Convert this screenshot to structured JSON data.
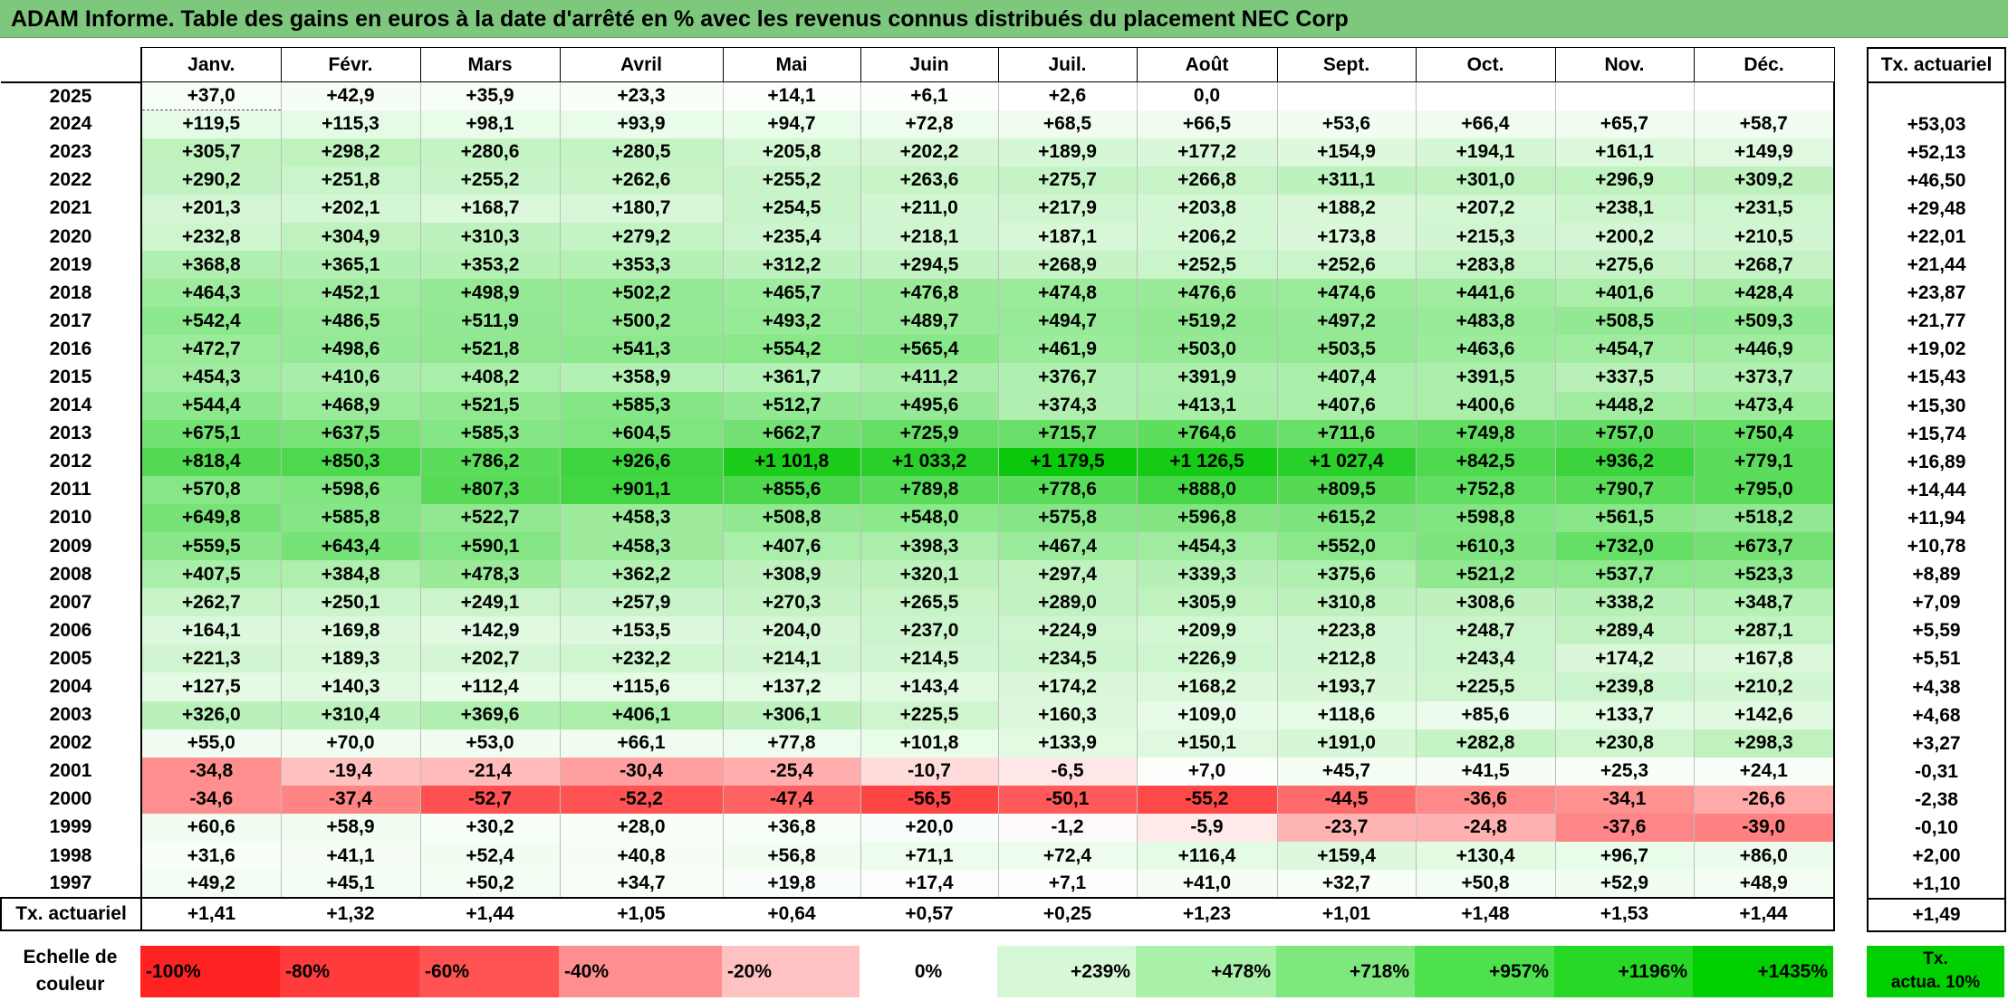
{
  "title": "ADAM Informe. Table des gains en euros à la date d'arrêté en % avec les revenus connus distribués du placement NEC Corp",
  "months": [
    "Janv.",
    "Févr.",
    "Mars",
    "Avril",
    "Mai",
    "Juin",
    "Juil.",
    "Août",
    "Sept.",
    "Oct.",
    "Nov.",
    "Déc."
  ],
  "side_header": "Tx. actuariel",
  "rows": [
    {
      "year": "2025",
      "vals": [
        "+37,0",
        "+42,9",
        "+35,9",
        "+23,3",
        "+14,1",
        "+6,1",
        "+2,6",
        "0,0",
        "",
        "",
        "",
        ""
      ],
      "bg": [
        "#f7fdf7",
        "#f6fdf6",
        "#f7fdf7",
        "#f9fef9",
        "#fbfefb",
        "#fdfffd",
        "#fefffe",
        "#ffffff",
        "#ffffff",
        "#ffffff",
        "#ffffff",
        "#ffffff"
      ],
      "tx": ""
    },
    {
      "year": "2024",
      "vals": [
        "+119,5",
        "+115,3",
        "+98,1",
        "+93,9",
        "+94,7",
        "+72,8",
        "+68,5",
        "+66,5",
        "+53,6",
        "+66,4",
        "+65,7",
        "+58,7"
      ],
      "bg": [
        "#e5fbe5",
        "#e6fbe6",
        "#e8fce8",
        "#e9fce9",
        "#e9fce9",
        "#eefcee",
        "#effcef",
        "#effcef",
        "#f2fdf2",
        "#effcef",
        "#effcef",
        "#f1fdf1"
      ],
      "tx": "+53,03"
    },
    {
      "year": "2023",
      "vals": [
        "+305,7",
        "+298,2",
        "+280,6",
        "+280,5",
        "+205,8",
        "+202,2",
        "+189,9",
        "+177,2",
        "+154,9",
        "+194,1",
        "+161,1",
        "+149,9"
      ],
      "bg": [
        "#bff2bf",
        "#c0f2c0",
        "#c4f3c4",
        "#c4f3c4",
        "#d3f6d3",
        "#d4f6d4",
        "#d6f7d6",
        "#d9f7d9",
        "#def8de",
        "#d5f7d5",
        "#dcf8dc",
        "#dff8df"
      ],
      "tx": "+52,13"
    },
    {
      "year": "2022",
      "vals": [
        "+290,2",
        "+251,8",
        "+255,2",
        "+262,6",
        "+255,2",
        "+263,6",
        "+275,7",
        "+266,8",
        "+311,1",
        "+301,0",
        "+296,9",
        "+309,2"
      ],
      "bg": [
        "#c2f2c2",
        "#caf4ca",
        "#c9f4c9",
        "#c8f4c8",
        "#c9f4c9",
        "#c8f4c8",
        "#c5f3c5",
        "#c7f3c7",
        "#bdf1bd",
        "#bff2bf",
        "#c0f2c0",
        "#bef1be"
      ],
      "tx": "+46,50"
    },
    {
      "year": "2021",
      "vals": [
        "+201,3",
        "+202,1",
        "+168,7",
        "+180,7",
        "+254,5",
        "+211,0",
        "+217,9",
        "+203,8",
        "+188,2",
        "+207,2",
        "+238,1",
        "+231,5"
      ],
      "bg": [
        "#d4f6d4",
        "#d4f6d4",
        "#dbf8db",
        "#d8f7d8",
        "#c9f4c9",
        "#d2f6d2",
        "#d1f5d1",
        "#d3f6d3",
        "#d7f7d7",
        "#d3f6d3",
        "#ccf5cc",
        "#cef5ce"
      ],
      "tx": "+29,48"
    },
    {
      "year": "2020",
      "vals": [
        "+232,8",
        "+304,9",
        "+310,3",
        "+279,2",
        "+235,4",
        "+218,1",
        "+187,1",
        "+206,2",
        "+173,8",
        "+215,3",
        "+200,2",
        "+210,5"
      ],
      "bg": [
        "#cef5ce",
        "#bff2bf",
        "#bdf1bd",
        "#c4f3c4",
        "#cdf5cd",
        "#d1f5d1",
        "#d7f7d7",
        "#d3f6d3",
        "#daf7da",
        "#d1f5d1",
        "#d4f6d4",
        "#d2f6d2"
      ],
      "tx": "+22,01"
    },
    {
      "year": "2019",
      "vals": [
        "+368,8",
        "+365,1",
        "+353,2",
        "+353,3",
        "+312,2",
        "+294,5",
        "+268,9",
        "+252,5",
        "+252,6",
        "+283,8",
        "+275,6",
        "+268,7"
      ],
      "bg": [
        "#b1efb1",
        "#b2efb2",
        "#b5f0b5",
        "#b5f0b5",
        "#bdf1bd",
        "#c1f2c1",
        "#c6f3c6",
        "#caf4ca",
        "#caf4ca",
        "#c3f3c3",
        "#c5f3c5",
        "#c6f3c6"
      ],
      "tx": "+21,44"
    },
    {
      "year": "2018",
      "vals": [
        "+464,3",
        "+452,1",
        "+498,9",
        "+502,2",
        "+465,7",
        "+476,8",
        "+474,8",
        "+476,6",
        "+474,6",
        "+441,6",
        "+401,6",
        "+428,4"
      ],
      "bg": [
        "#9deb9d",
        "#a0eba0",
        "#95e995",
        "#95e995",
        "#9deb9d",
        "#9aea9a",
        "#9beb9b",
        "#9aea9a",
        "#9beb9b",
        "#a2eca2",
        "#aaeeaa",
        "#a5eda5"
      ],
      "tx": "+23,87"
    },
    {
      "year": "2017",
      "vals": [
        "+542,4",
        "+486,5",
        "+511,9",
        "+500,2",
        "+493,2",
        "+489,7",
        "+494,7",
        "+519,2",
        "+497,2",
        "+483,8",
        "+508,5",
        "+509,3"
      ],
      "bg": [
        "#8de88d",
        "#98ea98",
        "#93e993",
        "#95e995",
        "#97ea97",
        "#98ea98",
        "#97ea97",
        "#91e891",
        "#96e996",
        "#98ea98",
        "#93e993",
        "#93e993"
      ],
      "tx": "+21,77"
    },
    {
      "year": "2016",
      "vals": [
        "+472,7",
        "+498,6",
        "+521,8",
        "+541,3",
        "+554,2",
        "+565,4",
        "+461,9",
        "+503,0",
        "+503,5",
        "+463,6",
        "+454,7",
        "+446,9"
      ],
      "bg": [
        "#9beb9b",
        "#96e996",
        "#91e891",
        "#8de88d",
        "#8ae78a",
        "#88e788",
        "#9deb9d",
        "#95e995",
        "#95e995",
        "#9deb9d",
        "#9feb9f",
        "#a1eca1"
      ],
      "tx": "+19,02"
    },
    {
      "year": "2015",
      "vals": [
        "+454,3",
        "+410,6",
        "+408,2",
        "+358,9",
        "+361,7",
        "+411,2",
        "+376,7",
        "+391,9",
        "+407,4",
        "+391,5",
        "+337,5",
        "+373,7"
      ],
      "bg": [
        "#9feb9f",
        "#a8eda8",
        "#a9eea9",
        "#b3f0b3",
        "#b3f0b3",
        "#a8eda8",
        "#afefaf",
        "#acefac",
        "#a9eea9",
        "#acefac",
        "#b8f0b8",
        "#b0efb0"
      ],
      "tx": "+15,43"
    },
    {
      "year": "2014",
      "vals": [
        "+544,4",
        "+468,9",
        "+521,5",
        "+585,3",
        "+512,7",
        "+495,6",
        "+374,3",
        "+413,1",
        "+407,6",
        "+400,6",
        "+448,2",
        "+473,4"
      ],
      "bg": [
        "#8ce88c",
        "#9ceb9c",
        "#91e891",
        "#84e684",
        "#93e993",
        "#96e996",
        "#b0efb0",
        "#a8eda8",
        "#a9eea9",
        "#aaeeaa",
        "#a1eca1",
        "#9beb9b"
      ],
      "tx": "+15,30"
    },
    {
      "year": "2013",
      "vals": [
        "+675,1",
        "+637,5",
        "+585,3",
        "+604,5",
        "+662,7",
        "+725,9",
        "+715,7",
        "+764,6",
        "+711,6",
        "+749,8",
        "+757,0",
        "+750,4"
      ],
      "bg": [
        "#71e171",
        "#79e279",
        "#84e684",
        "#80e580",
        "#74e174",
        "#67df67",
        "#69df69",
        "#5fdd5f",
        "#6adf6a",
        "#62de62",
        "#60dd60",
        "#62de62"
      ],
      "tx": "+15,74"
    },
    {
      "year": "2012",
      "vals": [
        "+818,4",
        "+850,3",
        "+786,2",
        "+926,6",
        "+1 101,8",
        "+1 033,2",
        "+1 179,5",
        "+1 126,5",
        "+1 027,4",
        "+842,5",
        "+936,2",
        "+779,1"
      ],
      "bg": [
        "#54da54",
        "#4dd94d",
        "#5bdc5b",
        "#3ed53e",
        "#1bcc1b",
        "#29d029",
        "#0cc80c",
        "#16cb16",
        "#2ad02a",
        "#4fd94f",
        "#3cd43c",
        "#5cdc5c"
      ],
      "tx": "+16,89"
    },
    {
      "year": "2011",
      "vals": [
        "+570,8",
        "+598,6",
        "+807,3",
        "+901,1",
        "+855,6",
        "+789,8",
        "+778,6",
        "+888,0",
        "+809,5",
        "+752,8",
        "+790,7",
        "+795,0"
      ],
      "bg": [
        "#87e787",
        "#81e581",
        "#57db57",
        "#43d643",
        "#4cd84c",
        "#5adc5a",
        "#5cdc5c",
        "#46d746",
        "#56da56",
        "#62de62",
        "#5adc5a",
        "#59dc59"
      ],
      "tx": "+14,44"
    },
    {
      "year": "2010",
      "vals": [
        "+649,8",
        "+585,8",
        "+522,7",
        "+458,3",
        "+508,8",
        "+548,0",
        "+575,8",
        "+596,8",
        "+615,2",
        "+598,8",
        "+561,5",
        "+518,2"
      ],
      "bg": [
        "#77e277",
        "#84e684",
        "#91e891",
        "#9eeb9e",
        "#93e993",
        "#8be88b",
        "#86e686",
        "#82e582",
        "#7ee47e",
        "#81e581",
        "#89e789",
        "#92e892"
      ],
      "tx": "+11,94"
    },
    {
      "year": "2009",
      "vals": [
        "+559,5",
        "+643,4",
        "+590,1",
        "+458,3",
        "+407,6",
        "+398,3",
        "+467,4",
        "+454,3",
        "+552,0",
        "+610,3",
        "+732,0",
        "+673,7"
      ],
      "bg": [
        "#89e789",
        "#77e277",
        "#83e583",
        "#9eeb9e",
        "#a9eea9",
        "#abeeab",
        "#9ceb9c",
        "#9feb9f",
        "#8ae78a",
        "#7fe47f",
        "#66df66",
        "#72e172"
      ],
      "tx": "+10,78"
    },
    {
      "year": "2008",
      "vals": [
        "+407,5",
        "+384,8",
        "+478,3",
        "+362,2",
        "+308,9",
        "+320,1",
        "+297,4",
        "+339,3",
        "+375,6",
        "+521,2",
        "+537,7",
        "+523,3"
      ],
      "bg": [
        "#a9eea9",
        "#aeefae",
        "#9aea9a",
        "#b3f0b3",
        "#bef1be",
        "#bcf1bc",
        "#c0f2c0",
        "#b7f0b7",
        "#afefaf",
        "#91e891",
        "#8ee88e",
        "#91e891"
      ],
      "tx": "+8,89"
    },
    {
      "year": "2007",
      "vals": [
        "+262,7",
        "+250,1",
        "+249,1",
        "+257,9",
        "+270,3",
        "+265,5",
        "+289,0",
        "+305,9",
        "+310,8",
        "+308,6",
        "+338,2",
        "+348,7"
      ],
      "bg": [
        "#c8f4c8",
        "#cbf4cb",
        "#cbf4cb",
        "#c9f4c9",
        "#c6f3c6",
        "#c7f3c7",
        "#c2f2c2",
        "#bff2bf",
        "#bdf1bd",
        "#bef1be",
        "#b7f0b7",
        "#b5f0b5"
      ],
      "tx": "+7,09"
    },
    {
      "year": "2006",
      "vals": [
        "+164,1",
        "+169,8",
        "+142,9",
        "+153,5",
        "+204,0",
        "+237,0",
        "+224,9",
        "+209,9",
        "+223,8",
        "+248,7",
        "+289,4",
        "+287,1"
      ],
      "bg": [
        "#dcf8dc",
        "#dbf8db",
        "#e1f9e1",
        "#def8de",
        "#d4f6d4",
        "#cdf5cd",
        "#cff5cf",
        "#d3f6d3",
        "#d0f5d0",
        "#cbf4cb",
        "#c2f2c2",
        "#c3f3c3"
      ],
      "tx": "+5,59"
    },
    {
      "year": "2005",
      "vals": [
        "+221,3",
        "+189,3",
        "+202,7",
        "+232,2",
        "+214,1",
        "+214,5",
        "+234,5",
        "+226,9",
        "+212,8",
        "+243,4",
        "+174,2",
        "+167,8"
      ],
      "bg": [
        "#d0f5d0",
        "#d7f7d7",
        "#d4f6d4",
        "#cef5ce",
        "#d1f5d1",
        "#d1f5d1",
        "#cdf5cd",
        "#cff5cf",
        "#d2f6d2",
        "#ccf4cc",
        "#daf7da",
        "#dbf8db"
      ],
      "tx": "+5,51"
    },
    {
      "year": "2004",
      "vals": [
        "+127,5",
        "+140,3",
        "+112,4",
        "+115,6",
        "+137,2",
        "+143,4",
        "+174,2",
        "+168,2",
        "+193,7",
        "+225,5",
        "+239,8",
        "+210,2"
      ],
      "bg": [
        "#e4fae4",
        "#e1f9e1",
        "#e7fbe7",
        "#e6fbe6",
        "#e2f9e2",
        "#e1f9e1",
        "#daf7da",
        "#dbf8db",
        "#d6f6d6",
        "#cff5cf",
        "#ccf4cc",
        "#d2f6d2"
      ],
      "tx": "+4,38"
    },
    {
      "year": "2003",
      "vals": [
        "+326,0",
        "+310,4",
        "+369,6",
        "+406,1",
        "+306,1",
        "+225,5",
        "+160,3",
        "+109,0",
        "+118,6",
        "+85,6",
        "+133,7",
        "+142,6"
      ],
      "bg": [
        "#baf1ba",
        "#bdf1bd",
        "#b1efb1",
        "#aaeeaa",
        "#bef1be",
        "#cff5cf",
        "#ddf8dd",
        "#e8fbe8",
        "#e6fbe6",
        "#ecfcec",
        "#e2fae2",
        "#e0f9e0"
      ],
      "tx": "+4,68"
    },
    {
      "year": "2002",
      "vals": [
        "+55,0",
        "+70,0",
        "+53,0",
        "+66,1",
        "+77,8",
        "+101,8",
        "+133,9",
        "+150,1",
        "+191,0",
        "+282,8",
        "+230,8",
        "+298,3"
      ],
      "bg": [
        "#f2fdf2",
        "#effcef",
        "#f2fdf2",
        "#effcef",
        "#edfced",
        "#e8fce8",
        "#e2f9e2",
        "#dff8df",
        "#d6f7d6",
        "#c4f3c4",
        "#cef5ce",
        "#c0f2c0"
      ],
      "tx": "+3,27"
    },
    {
      "year": "2001",
      "vals": [
        "-34,8",
        "-19,4",
        "-21,4",
        "-30,4",
        "-25,4",
        "-10,7",
        "-6,5",
        "+7,0",
        "+45,7",
        "+41,5",
        "+25,3",
        "+24,1"
      ],
      "bg": [
        "#ff8f8f",
        "#ffc0c0",
        "#ffbaba",
        "#ff9f9f",
        "#ffadad",
        "#ffdcdc",
        "#ffe7e7",
        "#fdfffd",
        "#f4fdf4",
        "#f5fdf5",
        "#f9fef9",
        "#f9fef9"
      ],
      "tx": "-0,31"
    },
    {
      "year": "2000",
      "vals": [
        "-34,6",
        "-37,4",
        "-52,7",
        "-52,2",
        "-47,4",
        "-56,5",
        "-50,1",
        "-55,2",
        "-44,5",
        "-36,6",
        "-34,1",
        "-26,6"
      ],
      "bg": [
        "#ff8f8f",
        "#ff8585",
        "#ff5151",
        "#ff5252",
        "#ff6262",
        "#ff4444",
        "#ff5959",
        "#ff4848",
        "#ff6b6b",
        "#ff8888",
        "#ff9191",
        "#ffa9a9"
      ],
      "tx": "-2,38"
    },
    {
      "year": "1999",
      "vals": [
        "+60,6",
        "+58,9",
        "+30,2",
        "+28,0",
        "+36,8",
        "+20,0",
        "-1,2",
        "-5,9",
        "-23,7",
        "-24,8",
        "-37,6",
        "-39,0"
      ],
      "bg": [
        "#f0fdf0",
        "#f1fdf1",
        "#f8fef8",
        "#f8fef8",
        "#f7fdf7",
        "#fafefa",
        "#fffafa",
        "#ffe9e9",
        "#ffb4b4",
        "#ffb0b0",
        "#ff8686",
        "#ff8080"
      ],
      "tx": "-0,10"
    },
    {
      "year": "1998",
      "vals": [
        "+31,6",
        "+41,1",
        "+52,4",
        "+40,8",
        "+56,8",
        "+71,1",
        "+72,4",
        "+116,4",
        "+159,4",
        "+130,4",
        "+96,7",
        "+86,0"
      ],
      "bg": [
        "#f8fef8",
        "#f5fdf5",
        "#f2fdf2",
        "#f5fdf5",
        "#f1fdf1",
        "#eefcee",
        "#eefcee",
        "#e6fbe6",
        "#ddf8dd",
        "#e3fae3",
        "#eafcea",
        "#ecfcec"
      ],
      "tx": "+2,00"
    },
    {
      "year": "1997",
      "vals": [
        "+49,2",
        "+45,1",
        "+50,2",
        "+34,7",
        "+19,8",
        "+17,4",
        "+7,1",
        "+41,0",
        "+32,7",
        "+50,8",
        "+52,9",
        "+48,9"
      ],
      "bg": [
        "#f3fdf3",
        "#f4fdf4",
        "#f3fdf3",
        "#f7fdf7",
        "#fafefa",
        "#fbfefb",
        "#fdfffd",
        "#f5fdf5",
        "#f7fdf7",
        "#f3fdf3",
        "#f2fdf2",
        "#f3fdf3"
      ],
      "tx": "+1,10"
    }
  ],
  "total_row": {
    "label": "Tx. actuariel",
    "vals": [
      "+1,41",
      "+1,32",
      "+1,44",
      "+1,05",
      "+0,64",
      "+0,57",
      "+0,25",
      "+1,23",
      "+1,01",
      "+1,48",
      "+1,53",
      "+1,44"
    ],
    "tx": "+1,49"
  },
  "scale": {
    "label_line1": "Echelle de",
    "label_line2": "couleur",
    "swatches": [
      {
        "text": "-100%",
        "color": "#ff2222",
        "kind": "neg"
      },
      {
        "text": "-80%",
        "color": "#ff3b3b",
        "kind": "neg"
      },
      {
        "text": "-60%",
        "color": "#ff5252",
        "kind": "neg"
      },
      {
        "text": "-40%",
        "color": "#ff8e8e",
        "kind": "neg"
      },
      {
        "text": "-20%",
        "color": "#ffc2c2",
        "kind": "neg"
      },
      {
        "text": "0%",
        "color": "#ffffff",
        "kind": "zero"
      },
      {
        "text": "+239%",
        "color": "#d6f8d6",
        "kind": "pos"
      },
      {
        "text": "+478%",
        "color": "#a9f0a9",
        "kind": "pos"
      },
      {
        "text": "+718%",
        "color": "#7ee87e",
        "kind": "pos"
      },
      {
        "text": "+957%",
        "color": "#4de14d",
        "kind": "pos"
      },
      {
        "text": "+1196%",
        "color": "#27d827",
        "kind": "pos"
      },
      {
        "text": "+1435%",
        "color": "#00d000",
        "kind": "pos"
      }
    ],
    "last_line1": "Tx.",
    "last_line2": "actua. 10%",
    "last_color": "#00d000"
  }
}
